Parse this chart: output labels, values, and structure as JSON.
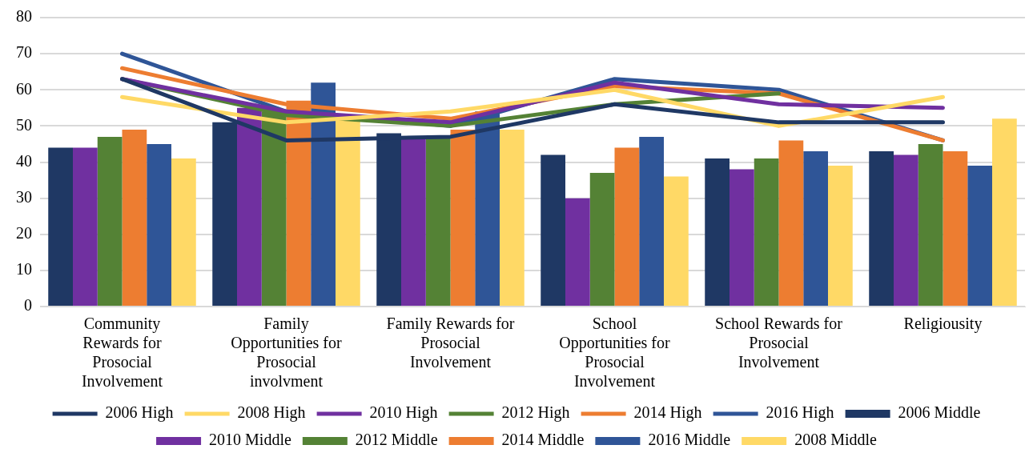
{
  "chart_data": {
    "type": "bar",
    "categories": [
      "Community Rewards for Prosocial Involvement",
      "Family Opportunities for Prosocial involvment",
      "Family Rewards for Prosocial Involvement",
      "School Opportunities for Prosocial Involvement",
      "School Rewards for Prosocial Involvement",
      "Religiousity"
    ],
    "ylim": [
      0,
      80
    ],
    "yticks": [
      0,
      10,
      20,
      30,
      40,
      50,
      60,
      70,
      80
    ],
    "grid": "y",
    "legend": "bottom",
    "marker": "none",
    "series": [
      {
        "name": "2006 Middle",
        "color": "#1f3864",
        "values": [
          44,
          51,
          48,
          42,
          41,
          43
        ]
      },
      {
        "name": "2010 Middle",
        "color": "#7030a0",
        "values": [
          44,
          55,
          47,
          30,
          38,
          42
        ]
      },
      {
        "name": "2012 Middle",
        "color": "#548235",
        "values": [
          47,
          54,
          47,
          37,
          41,
          45
        ]
      },
      {
        "name": "2014 Middle",
        "color": "#ed7d31",
        "values": [
          49,
          57,
          49,
          44,
          46,
          43
        ]
      },
      {
        "name": "2016 Middle",
        "color": "#2f5597",
        "values": [
          45,
          62,
          54,
          47,
          43,
          39
        ]
      },
      {
        "name": "2008 Middle",
        "color": "#ffd966",
        "values": [
          41,
          52,
          49,
          36,
          39,
          52
        ]
      },
      {
        "name": "2006 High",
        "type": "line",
        "color": "#1f3864",
        "values": [
          63,
          46,
          47,
          56,
          51,
          51
        ]
      },
      {
        "name": "2008 High",
        "type": "line",
        "color": "#ffd966",
        "values": [
          58,
          51,
          54,
          60,
          50,
          58
        ]
      },
      {
        "name": "2010 High",
        "type": "line",
        "color": "#7030a0",
        "values": [
          63,
          54,
          51,
          62,
          56,
          55
        ]
      },
      {
        "name": "2012 High",
        "type": "line",
        "color": "#548235",
        "values": [
          63,
          53,
          50,
          56,
          59,
          null
        ]
      },
      {
        "name": "2014 High",
        "type": "line",
        "color": "#ed7d31",
        "values": [
          66,
          56,
          52,
          61,
          59,
          46
        ]
      },
      {
        "name": "2016 High",
        "type": "line",
        "color": "#2f5597",
        "values": [
          70,
          54,
          50,
          63,
          60,
          46
        ]
      }
    ]
  }
}
